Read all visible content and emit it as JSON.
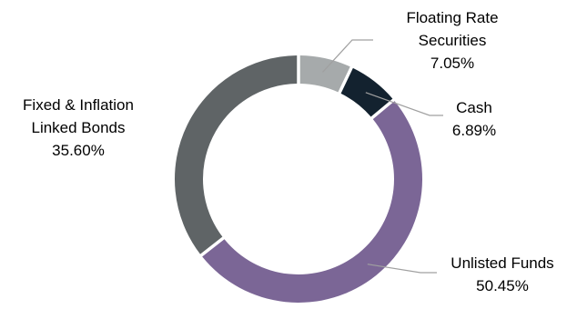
{
  "chart_data": {
    "type": "pie",
    "variant": "donut",
    "title": "",
    "legend": "none",
    "slices": [
      {
        "label_lines": [
          "Floating Rate",
          "Securities"
        ],
        "percent_label": "7.05%",
        "value": 7.05,
        "color": "#a6aaab"
      },
      {
        "label_lines": [
          "Cash"
        ],
        "percent_label": "6.89%",
        "value": 6.89,
        "color": "#13222f"
      },
      {
        "label_lines": [
          "Unlisted Funds"
        ],
        "percent_label": "50.45%",
        "value": 50.45,
        "color": "#7b6696"
      },
      {
        "label_lines": [
          "Fixed & Inflation",
          "Linked Bonds"
        ],
        "percent_label": "35.60%",
        "value": 35.6,
        "color": "#5f6466"
      }
    ]
  }
}
